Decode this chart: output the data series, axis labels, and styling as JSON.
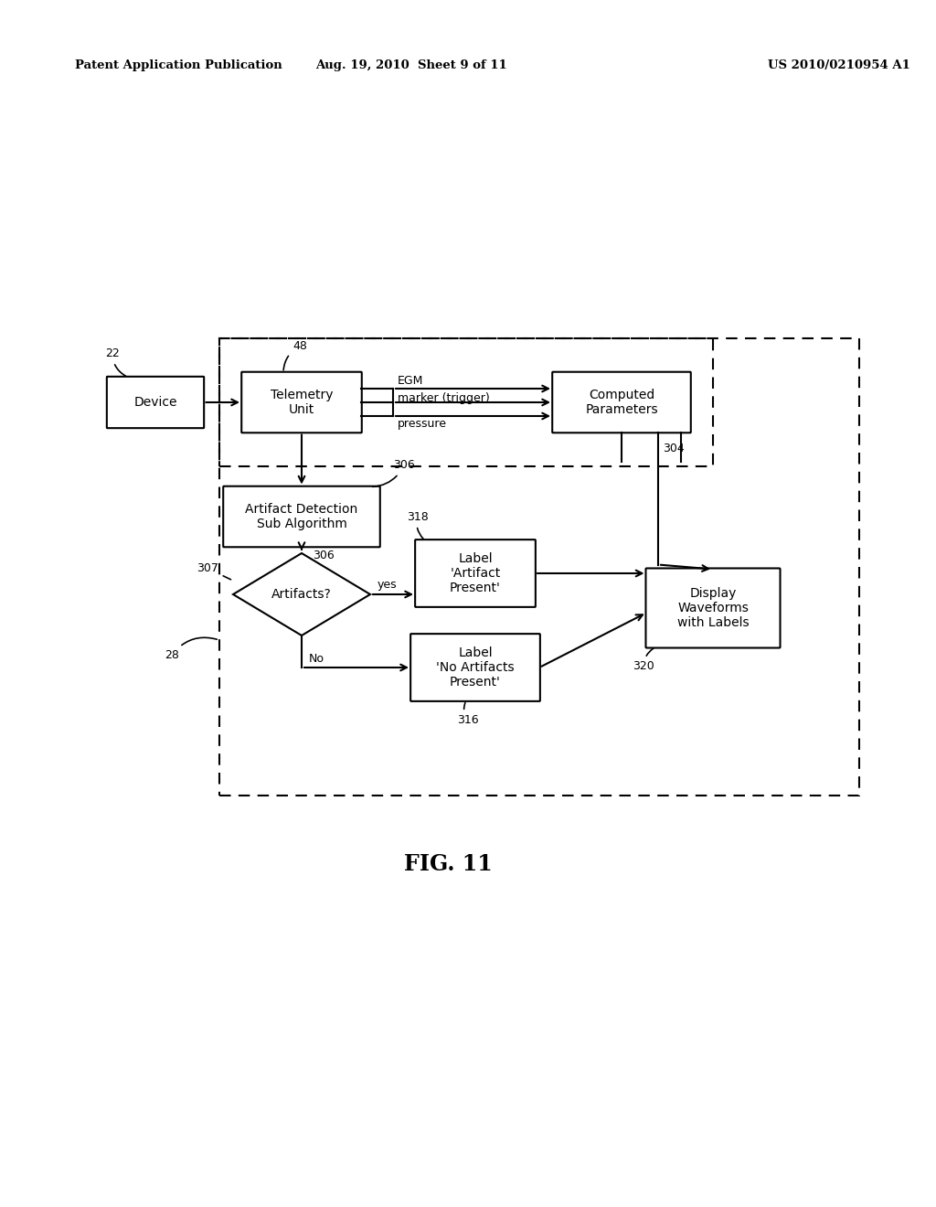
{
  "bg_color": "#ffffff",
  "header_left": "Patent Application Publication",
  "header_mid": "Aug. 19, 2010  Sheet 9 of 11",
  "header_right": "US 2010/0210954 A1",
  "fig_label": "FIG. 11"
}
